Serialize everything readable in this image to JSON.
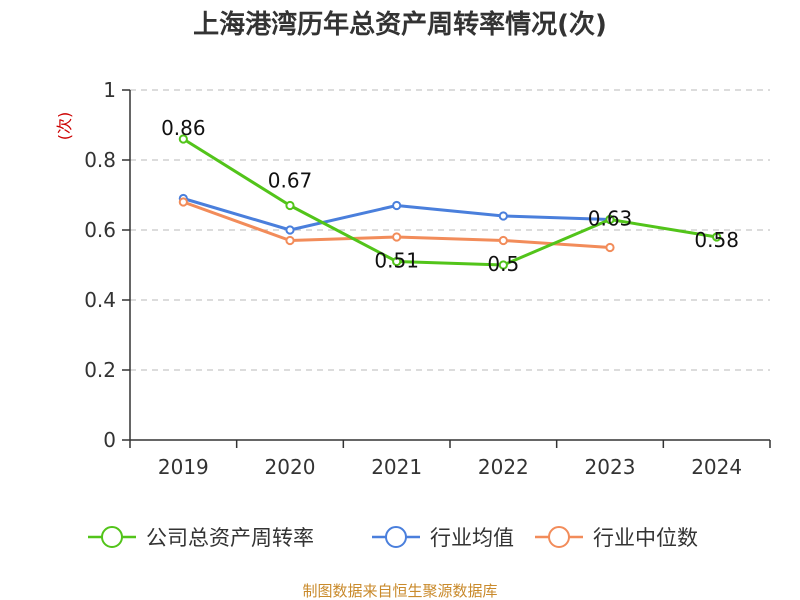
{
  "chart_data": {
    "type": "line",
    "title": "上海港湾历年总资产周转率情况(次)",
    "ylabel": "(次)",
    "xlabel": "",
    "categories": [
      "2019",
      "2020",
      "2021",
      "2022",
      "2023",
      "2024"
    ],
    "ylim": [
      0,
      1
    ],
    "yticks": [
      0,
      0.2,
      0.4,
      0.6,
      0.8,
      1
    ],
    "ytick_labels": [
      "0",
      "0.2",
      "0.4",
      "0.6",
      "0.8",
      "1"
    ],
    "grid": true,
    "legend_position": "bottom",
    "series": [
      {
        "name": "公司总资产周转率",
        "color": "#52c41a",
        "values": [
          0.86,
          0.67,
          0.51,
          0.5,
          0.63,
          0.58
        ],
        "labels": [
          "0.86",
          "0.67",
          "0.51",
          "0.5",
          "0.63",
          "0.58"
        ]
      },
      {
        "name": "行业均值",
        "color": "#4a7fdc",
        "values": [
          0.69,
          0.6,
          0.67,
          0.64,
          0.63,
          null
        ]
      },
      {
        "name": "行业中位数",
        "color": "#f28c5a",
        "values": [
          0.68,
          0.57,
          0.58,
          0.57,
          0.55,
          null
        ]
      }
    ]
  },
  "source": "制图数据来自恒生聚源数据库"
}
